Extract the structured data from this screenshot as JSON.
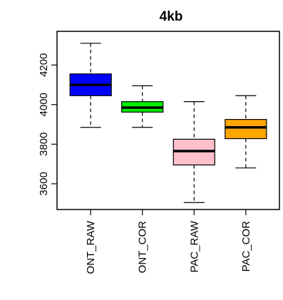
{
  "chart_data": {
    "type": "box",
    "title": "4kb",
    "xlabel": "",
    "ylabel": "",
    "ylim": [
      3470,
      4370
    ],
    "yticks": [
      3600,
      3800,
      4000,
      4200
    ],
    "categories": [
      "ONT_RAW",
      "ONT_COR",
      "PAC_RAW",
      "PAC_COR"
    ],
    "boxes": [
      {
        "label": "ONT_RAW",
        "min": 3885,
        "q1": 4045,
        "median": 4100,
        "q3": 4155,
        "max": 4310,
        "color": "#0000ff"
      },
      {
        "label": "ONT_COR",
        "min": 3885,
        "q1": 3962,
        "median": 3985,
        "q3": 4015,
        "max": 4095,
        "color": "#00ee00"
      },
      {
        "label": "PAC_RAW",
        "min": 3505,
        "q1": 3695,
        "median": 3765,
        "q3": 3825,
        "max": 4015,
        "color": "#ffc0cb"
      },
      {
        "label": "PAC_COR",
        "min": 3680,
        "q1": 3828,
        "median": 3885,
        "q3": 3925,
        "max": 4045,
        "color": "#ffa500"
      }
    ],
    "grid": false,
    "legend": "none"
  }
}
